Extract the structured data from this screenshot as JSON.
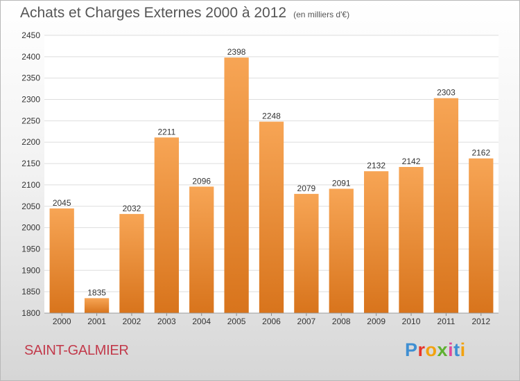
{
  "chart_data": {
    "type": "bar",
    "title": "Achats et Charges Externes 2000 à 2012",
    "subtitle": "(en milliers d'€)",
    "categories": [
      "2000",
      "2001",
      "2002",
      "2003",
      "2004",
      "2005",
      "2006",
      "2007",
      "2008",
      "2009",
      "2010",
      "2011",
      "2012"
    ],
    "values": [
      2045,
      1835,
      2032,
      2211,
      2096,
      2398,
      2248,
      2079,
      2091,
      2132,
      2142,
      2303,
      2162
    ],
    "ylim": [
      1800,
      2450
    ],
    "yticks": [
      1800,
      1850,
      1900,
      1950,
      2000,
      2050,
      2100,
      2150,
      2200,
      2250,
      2300,
      2350,
      2400,
      2450
    ],
    "xlabel": "",
    "ylabel": "",
    "grid": true,
    "legend": "none",
    "bar_color_top": "#f7a555",
    "bar_color_bottom": "#d8741c"
  },
  "location_label": "SAINT-GALMIER",
  "logo": {
    "letters": [
      "P",
      "r",
      "o",
      "x",
      "i",
      "t",
      "i"
    ],
    "colors": [
      "#3f8fd2",
      "#e6352b",
      "#f2a20f",
      "#5fb131",
      "#e04a9b",
      "#3f8fd2",
      "#f2a20f"
    ]
  }
}
